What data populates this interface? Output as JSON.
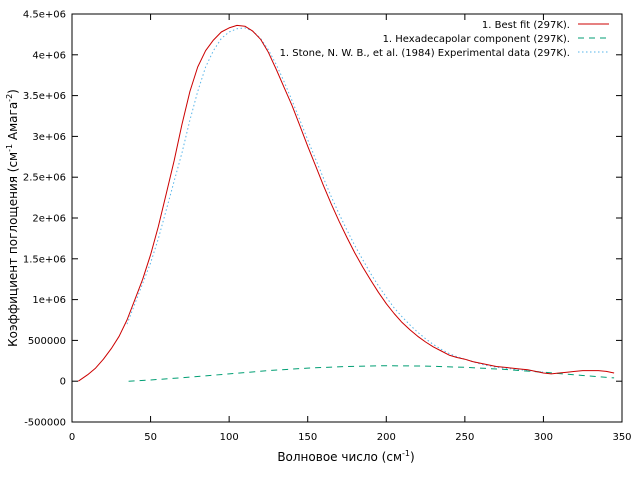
{
  "chart_data": {
    "type": "line",
    "xlabel": {
      "main": "Волновое число (см",
      "sup": "-1",
      "close": ")"
    },
    "ylabel": {
      "main": "Коэффициент поглощения (см",
      "sup1": "-1",
      "mid": " Амага",
      "sup2": "-2",
      "close": ")"
    },
    "xlim": [
      0,
      350
    ],
    "ylim": [
      -500000,
      4500000
    ],
    "x_ticks": [
      {
        "value": 0,
        "label": "0"
      },
      {
        "value": 50,
        "label": "50"
      },
      {
        "value": 100,
        "label": "100"
      },
      {
        "value": 150,
        "label": "150"
      },
      {
        "value": 200,
        "label": "200"
      },
      {
        "value": 250,
        "label": "250"
      },
      {
        "value": 300,
        "label": "300"
      },
      {
        "value": 350,
        "label": "350"
      }
    ],
    "y_ticks": [
      {
        "value": -500000,
        "label": "-500000"
      },
      {
        "value": 0,
        "label": "0"
      },
      {
        "value": 500000,
        "label": "500000"
      },
      {
        "value": 1000000,
        "label": "1e+06"
      },
      {
        "value": 1500000,
        "label": "1.5e+06"
      },
      {
        "value": 2000000,
        "label": "2e+06"
      },
      {
        "value": 2500000,
        "label": "2.5e+06"
      },
      {
        "value": 3000000,
        "label": "3e+06"
      },
      {
        "value": 3500000,
        "label": "3.5e+06"
      },
      {
        "value": 4000000,
        "label": "4e+06"
      },
      {
        "value": 4500000,
        "label": "4.5e+06"
      }
    ],
    "grid": false,
    "legend_position": "top-right",
    "series": [
      {
        "name": "1. Best fit (297K).",
        "color": "#cc0000",
        "dash": "solid",
        "x": [
          4,
          10,
          15,
          20,
          25,
          30,
          35,
          40,
          45,
          50,
          55,
          60,
          65,
          70,
          75,
          80,
          85,
          90,
          95,
          100,
          105,
          110,
          115,
          120,
          125,
          130,
          135,
          140,
          145,
          150,
          155,
          160,
          165,
          170,
          175,
          180,
          185,
          190,
          195,
          200,
          205,
          210,
          215,
          220,
          225,
          230,
          235,
          240,
          245,
          250,
          255,
          260,
          265,
          270,
          275,
          280,
          285,
          290,
          295,
          300,
          305,
          310,
          315,
          320,
          325,
          330,
          335,
          340,
          345
        ],
        "y": [
          0,
          80000,
          160000,
          270000,
          400000,
          550000,
          750000,
          1000000,
          1250000,
          1550000,
          1900000,
          2300000,
          2700000,
          3150000,
          3550000,
          3850000,
          4050000,
          4180000,
          4280000,
          4330000,
          4360000,
          4350000,
          4290000,
          4190000,
          4030000,
          3820000,
          3600000,
          3380000,
          3130000,
          2880000,
          2640000,
          2400000,
          2170000,
          1960000,
          1760000,
          1570000,
          1400000,
          1240000,
          1090000,
          950000,
          830000,
          720000,
          630000,
          550000,
          480000,
          420000,
          370000,
          320000,
          290000,
          270000,
          240000,
          220000,
          200000,
          180000,
          170000,
          160000,
          150000,
          140000,
          120000,
          100000,
          90000,
          100000,
          110000,
          120000,
          130000,
          130000,
          130000,
          120000,
          100000
        ]
      },
      {
        "name": "1. Hexadecapolar component (297K).",
        "color": "#009e73",
        "dash": "dashed",
        "x": [
          36,
          50,
          75,
          100,
          125,
          150,
          175,
          200,
          225,
          250,
          275,
          300,
          325,
          345
        ],
        "y": [
          0,
          15000,
          50000,
          90000,
          130000,
          160000,
          180000,
          190000,
          185000,
          170000,
          145000,
          110000,
          70000,
          40000
        ]
      },
      {
        "name": "1. Stone, N. W. B., et al. (1984) Experimental data (297K).",
        "color": "#56b4e9",
        "dash": "dotted",
        "x": [
          35,
          40,
          45,
          50,
          55,
          60,
          65,
          70,
          75,
          80,
          85,
          90,
          95,
          100,
          105,
          110,
          115,
          120,
          125,
          130,
          135,
          140,
          145,
          150,
          155,
          160,
          165,
          170,
          175,
          180,
          185,
          190,
          195,
          200,
          205,
          210,
          215,
          220,
          225,
          230,
          235,
          240,
          245,
          250,
          255,
          260,
          265,
          270,
          275,
          280,
          285,
          290,
          295,
          300
        ],
        "y": [
          700000,
          950000,
          1200000,
          1450000,
          1750000,
          2100000,
          2450000,
          2800000,
          3200000,
          3550000,
          3850000,
          4050000,
          4200000,
          4280000,
          4320000,
          4330000,
          4290000,
          4200000,
          4060000,
          3880000,
          3670000,
          3440000,
          3200000,
          2960000,
          2720000,
          2490000,
          2260000,
          2050000,
          1850000,
          1660000,
          1490000,
          1320000,
          1170000,
          1030000,
          900000,
          790000,
          690000,
          600000,
          520000,
          450000,
          390000,
          340000,
          300000,
          270000,
          240000,
          210000,
          190000,
          170000,
          160000,
          150000,
          140000,
          130000,
          120000,
          110000
        ]
      }
    ]
  }
}
